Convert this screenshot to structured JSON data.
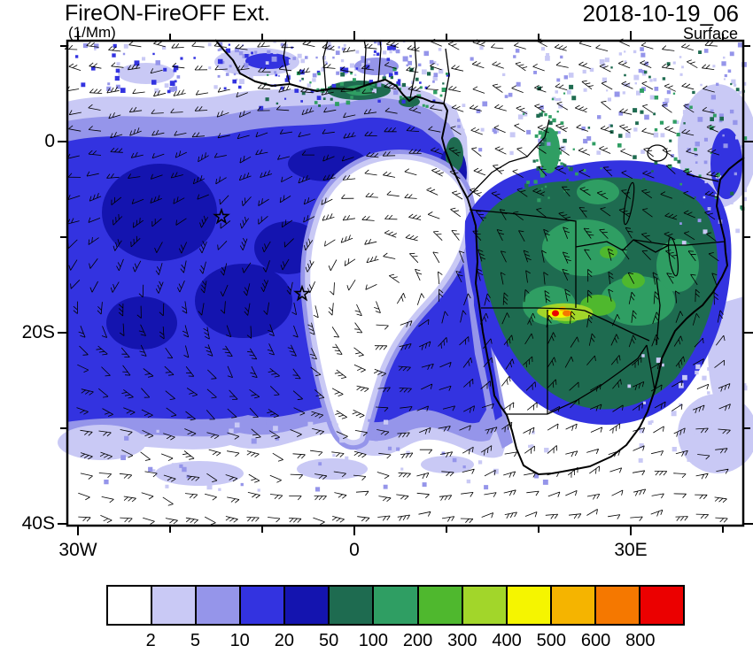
{
  "header": {
    "title": "FireON-FireOFF Ext.",
    "units": "(1/Mm)",
    "datetime": "2018-10-19_06",
    "level": "Surface"
  },
  "axes": {
    "y_ticks": [
      {
        "label": "0",
        "lat": 0
      },
      {
        "label": "20S",
        "lat": -20
      },
      {
        "label": "40S",
        "lat": -40
      }
    ],
    "x_ticks": [
      {
        "label": "30W",
        "lon": -30
      },
      {
        "label": "0",
        "lon": 0
      },
      {
        "label": "30E",
        "lon": 30
      }
    ]
  },
  "colorbar": {
    "values": [
      "2",
      "5",
      "10",
      "20",
      "50",
      "100",
      "200",
      "300",
      "400",
      "500",
      "600",
      "800"
    ],
    "colors": [
      "#ffffff",
      "#c9c9f5",
      "#9595ea",
      "#3333e0",
      "#1414af",
      "#1e6b50",
      "#2f9e63",
      "#4fb82e",
      "#a2d62a",
      "#f5f500",
      "#f5b400",
      "#f57800",
      "#eb0000"
    ]
  },
  "chart_data": {
    "type": "heatmap",
    "subtype": "filled-contour-map-with-wind-barbs",
    "title": "FireON-FireOFF Ext.",
    "units": "1/Mm",
    "datetime": "2018-10-19_06",
    "level": "Surface",
    "projection": "lat-lon",
    "lon_range": [
      -31.2,
      42.3
    ],
    "lat_range": [
      -40.3,
      10.6
    ],
    "x_tick_lons": [
      -30,
      0,
      30
    ],
    "y_tick_lats": [
      0,
      -20,
      -40
    ],
    "contour_levels": [
      2,
      5,
      10,
      20,
      50,
      100,
      200,
      300,
      400,
      500,
      600,
      800
    ],
    "palette": [
      "#ffffff",
      "#c9c9f5",
      "#9595ea",
      "#3333e0",
      "#1414af",
      "#1e6b50",
      "#2f9e63",
      "#4fb82e",
      "#a2d62a",
      "#f5f500",
      "#f5b400",
      "#f57800",
      "#eb0000"
    ],
    "overlays": [
      "surface wind barbs",
      "coastlines",
      "country borders"
    ],
    "markers": [
      {
        "symbol": "open-star",
        "lon": -14.5,
        "lat": -8
      },
      {
        "symbol": "open-star",
        "lon": -5.8,
        "lat": -16
      }
    ],
    "features": [
      {
        "name": "south-atlantic-smoke-plume",
        "approx_value": "10-50",
        "description": "Broad extinction-difference plume of 10-50 1/Mm covering the tropical South Atlantic from 30W to the Angolan coast, 5N-25S"
      },
      {
        "name": "clear-comma-slot",
        "approx_value": "<2",
        "description": "Comma-shaped region of values below 2 centered near 12S, 2E connecting to clear air south of 28S"
      },
      {
        "name": "southern-africa-source-region",
        "approx_value": "50-800",
        "description": "50-200 1/Mm over Angola/Zambia/Zimbabwe/Mozambique with a 400->800 1/Mm maximum streak near 20S, 23-26E"
      },
      {
        "name": "gulf-of-guinea-coastal-band",
        "approx_value": "50-200",
        "description": "Narrow green band of 50-200 along the Ghana/Nigeria coastline"
      }
    ]
  }
}
